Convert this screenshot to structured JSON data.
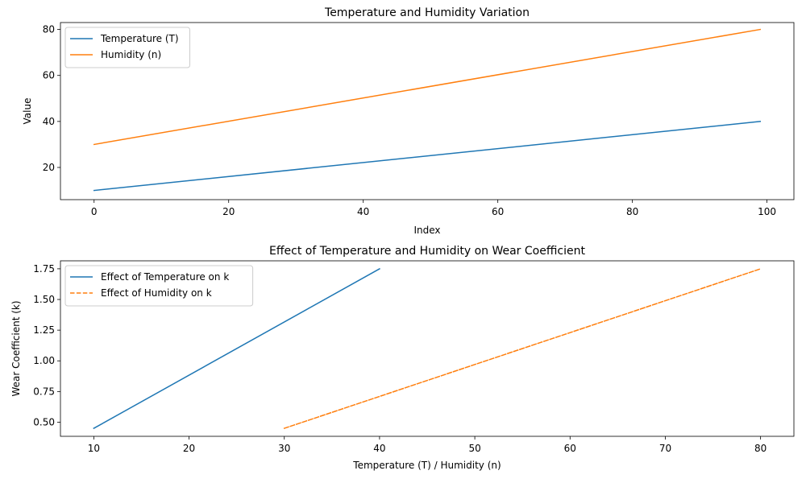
{
  "chart_data": [
    {
      "type": "line",
      "title": "Temperature and Humidity Variation",
      "xlabel": "Index",
      "ylabel": "Value",
      "xlim": [
        -5,
        104
      ],
      "ylim": [
        6,
        83
      ],
      "xticks": [
        0,
        20,
        40,
        60,
        80,
        100
      ],
      "yticks": [
        20,
        40,
        60,
        80
      ],
      "grid": false,
      "legend": "top-left",
      "series": [
        {
          "name": "Temperature (T)",
          "color": "#1f77b4",
          "dash": "solid",
          "x": [
            0,
            99
          ],
          "y": [
            10,
            40
          ]
        },
        {
          "name": "Humidity (n)",
          "color": "#ff7f0e",
          "dash": "solid",
          "x": [
            0,
            99
          ],
          "y": [
            30,
            80
          ]
        }
      ]
    },
    {
      "type": "line",
      "title": "Effect of Temperature and Humidity on Wear Coefficient",
      "xlabel": "Temperature (T) / Humidity (n)",
      "ylabel": "Wear Coefficient (k)",
      "xlim": [
        6.5,
        83.5
      ],
      "ylim": [
        0.385,
        1.815
      ],
      "xticks": [
        10,
        20,
        30,
        40,
        50,
        60,
        70,
        80
      ],
      "yticks": [
        0.5,
        0.75,
        1.0,
        1.25,
        1.5,
        1.75
      ],
      "ytick_labels": [
        "0.50",
        "0.75",
        "1.00",
        "1.25",
        "1.50",
        "1.75"
      ],
      "grid": false,
      "legend": "top-left",
      "series": [
        {
          "name": "Effect of Temperature on k",
          "color": "#1f77b4",
          "dash": "solid",
          "x": [
            10,
            40
          ],
          "y": [
            0.45,
            1.75
          ]
        },
        {
          "name": "Effect of Humidity on k",
          "color": "#ff7f0e",
          "dash": "dashed",
          "x": [
            30,
            80
          ],
          "y": [
            0.45,
            1.75
          ]
        }
      ]
    }
  ]
}
